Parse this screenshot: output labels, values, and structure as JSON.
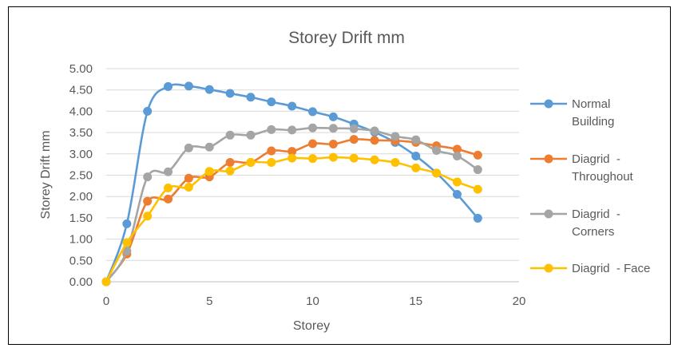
{
  "chart_data": {
    "type": "line",
    "title": "Storey Drift mm",
    "xlabel": "Storey",
    "ylabel": "Storey Drift mm",
    "xlim": [
      0,
      20
    ],
    "ylim": [
      0,
      5
    ],
    "xticks": [
      "0",
      "5",
      "10",
      "15",
      "20"
    ],
    "yticks": [
      "0.00",
      "0.50",
      "1.00",
      "1.50",
      "2.00",
      "2.50",
      "3.00",
      "3.50",
      "4.00",
      "4.50",
      "5.00"
    ],
    "grid": "horizontal",
    "legend_position": "right",
    "x": [
      0,
      1,
      2,
      3,
      4,
      5,
      6,
      7,
      8,
      9,
      10,
      11,
      12,
      13,
      14,
      15,
      16,
      17,
      18
    ],
    "series": [
      {
        "name": [
          "Normal",
          "Building"
        ],
        "color": "#5B9BD5",
        "values": [
          0,
          1.36,
          4.0,
          4.58,
          4.59,
          4.51,
          4.42,
          4.33,
          4.22,
          4.12,
          3.99,
          3.87,
          3.7,
          3.51,
          3.27,
          2.95,
          2.55,
          2.05,
          1.49
        ]
      },
      {
        "name": [
          "Diagrid  -",
          "Throughout"
        ],
        "color": "#ED7D31",
        "values": [
          0,
          0.65,
          1.89,
          1.94,
          2.43,
          2.46,
          2.8,
          2.8,
          3.07,
          3.06,
          3.24,
          3.23,
          3.34,
          3.32,
          3.31,
          3.27,
          3.19,
          3.11,
          2.97
        ]
      },
      {
        "name": [
          "Diagrid  -",
          "Corners"
        ],
        "color": "#A5A5A5",
        "values": [
          0,
          0.72,
          2.46,
          2.58,
          3.14,
          3.16,
          3.44,
          3.44,
          3.57,
          3.56,
          3.61,
          3.6,
          3.59,
          3.54,
          3.41,
          3.33,
          3.08,
          2.95,
          2.63
        ]
      },
      {
        "name": [
          "Diagrid  - Face"
        ],
        "color": "#FFC000",
        "values": [
          0,
          0.92,
          1.54,
          2.2,
          2.22,
          2.59,
          2.6,
          2.8,
          2.8,
          2.9,
          2.89,
          2.92,
          2.9,
          2.86,
          2.8,
          2.67,
          2.55,
          2.34,
          2.17
        ]
      }
    ]
  }
}
